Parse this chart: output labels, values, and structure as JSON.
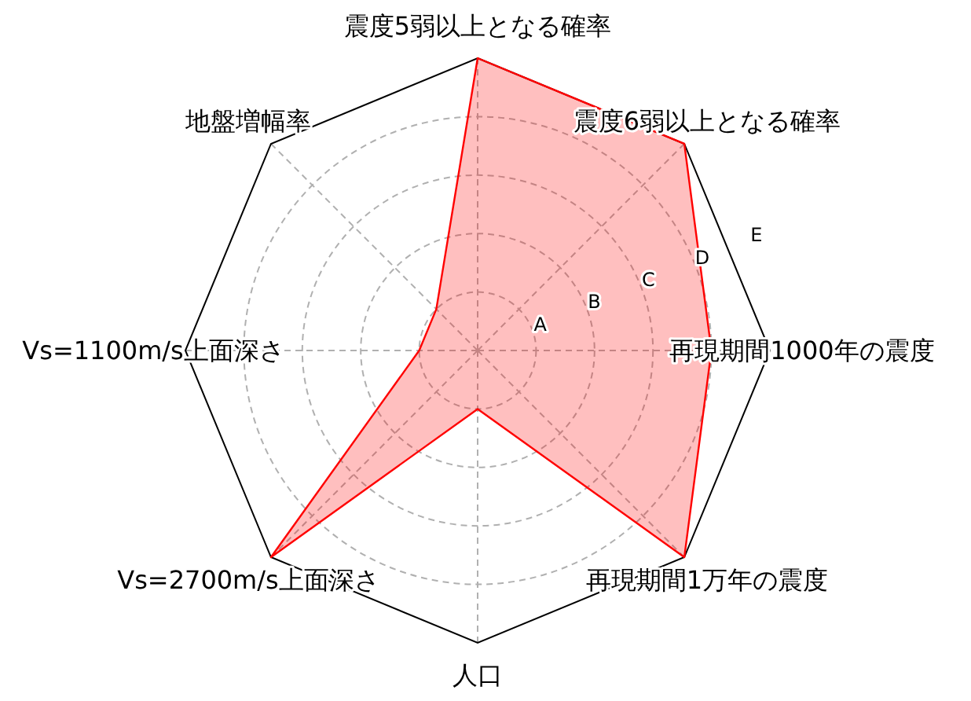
{
  "chart_data": {
    "type": "radar",
    "categories": [
      "震度5弱以上となる確率",
      "震度6弱以上となる確率",
      "再現期間1000年の震度",
      "再現期間1万年の震度",
      "人口",
      "Vs=2700m/s上面深さ",
      "Vs=1100m/s上面深さ",
      "地盤増幅率"
    ],
    "series": [
      {
        "color": "#ff0000",
        "values": [
          5,
          5,
          4,
          5,
          1,
          5,
          1,
          1
        ]
      }
    ],
    "ylim": [
      0,
      5
    ],
    "yticks": [
      {
        "value": 1,
        "label": "A"
      },
      {
        "value": 2,
        "label": "B"
      },
      {
        "value": 3,
        "label": "C"
      },
      {
        "value": 4,
        "label": "D"
      },
      {
        "value": 5,
        "label": "E"
      }
    ],
    "grid": true
  }
}
